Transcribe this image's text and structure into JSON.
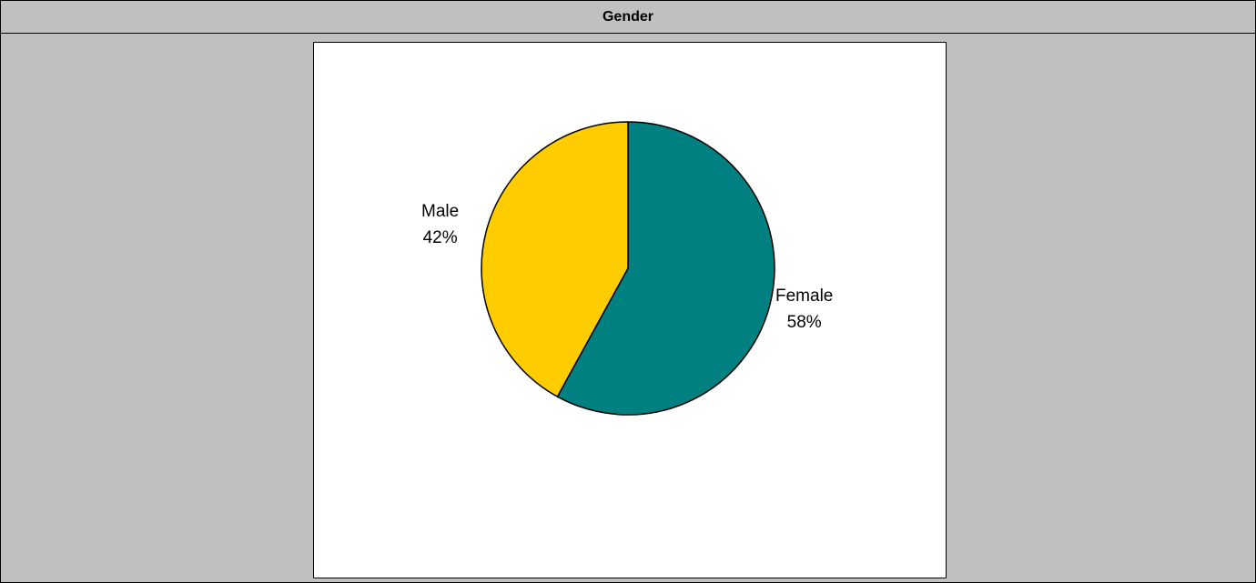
{
  "header": {
    "title": "Gender"
  },
  "chart_data": {
    "type": "pie",
    "title": "",
    "start_angle_deg": 0,
    "direction": "clockwise",
    "slices": [
      {
        "name": "Female",
        "value": 58,
        "label": "58%",
        "color": "#008080"
      },
      {
        "name": "Male",
        "value": 42,
        "label": "42%",
        "color": "#ffcc00"
      }
    ]
  }
}
